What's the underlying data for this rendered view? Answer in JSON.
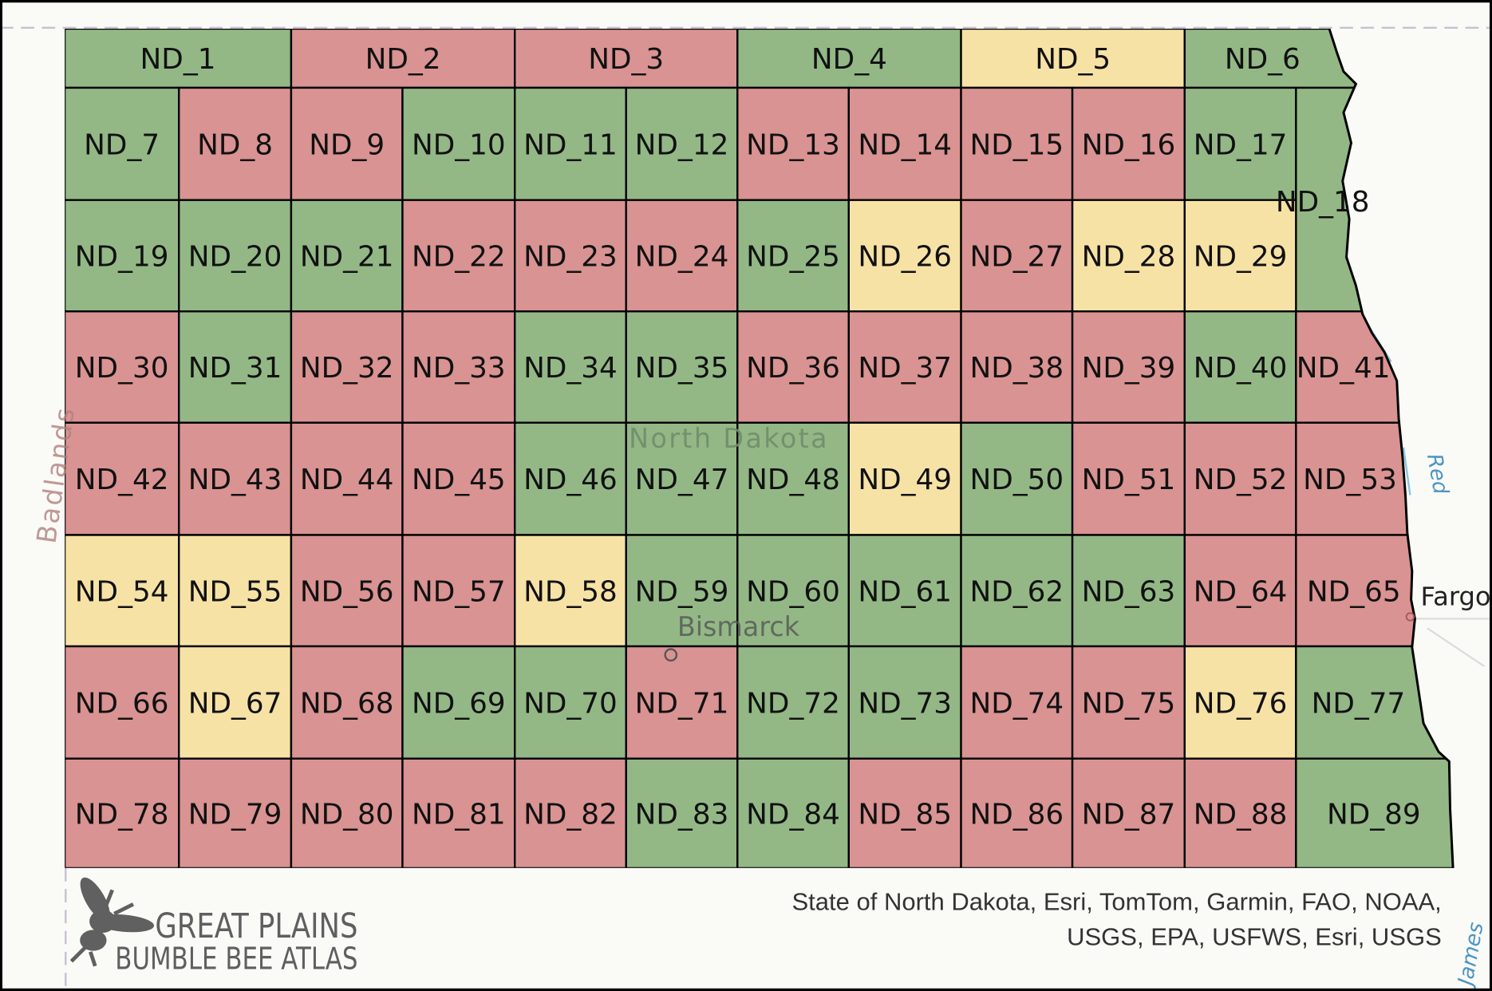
{
  "colors": {
    "green": "#93b886",
    "red": "#d99392",
    "yellow": "#f7e2a6"
  },
  "cells": [
    {
      "id": "ND_1",
      "c": "green"
    },
    {
      "id": "ND_2",
      "c": "red"
    },
    {
      "id": "ND_3",
      "c": "red"
    },
    {
      "id": "ND_4",
      "c": "green"
    },
    {
      "id": "ND_5",
      "c": "yellow"
    },
    {
      "id": "ND_6",
      "c": "green"
    },
    {
      "id": "ND_7",
      "c": "green"
    },
    {
      "id": "ND_8",
      "c": "red"
    },
    {
      "id": "ND_9",
      "c": "red"
    },
    {
      "id": "ND_10",
      "c": "green"
    },
    {
      "id": "ND_11",
      "c": "green"
    },
    {
      "id": "ND_12",
      "c": "green"
    },
    {
      "id": "ND_13",
      "c": "red"
    },
    {
      "id": "ND_14",
      "c": "red"
    },
    {
      "id": "ND_15",
      "c": "red"
    },
    {
      "id": "ND_16",
      "c": "red"
    },
    {
      "id": "ND_17",
      "c": "green"
    },
    {
      "id": "ND_18",
      "c": "green"
    },
    {
      "id": "ND_19",
      "c": "green"
    },
    {
      "id": "ND_20",
      "c": "green"
    },
    {
      "id": "ND_21",
      "c": "green"
    },
    {
      "id": "ND_22",
      "c": "red"
    },
    {
      "id": "ND_23",
      "c": "red"
    },
    {
      "id": "ND_24",
      "c": "red"
    },
    {
      "id": "ND_25",
      "c": "green"
    },
    {
      "id": "ND_26",
      "c": "yellow"
    },
    {
      "id": "ND_27",
      "c": "red"
    },
    {
      "id": "ND_28",
      "c": "yellow"
    },
    {
      "id": "ND_29",
      "c": "yellow"
    },
    {
      "id": "ND_30",
      "c": "red"
    },
    {
      "id": "ND_31",
      "c": "green"
    },
    {
      "id": "ND_32",
      "c": "red"
    },
    {
      "id": "ND_33",
      "c": "red"
    },
    {
      "id": "ND_34",
      "c": "green"
    },
    {
      "id": "ND_35",
      "c": "green"
    },
    {
      "id": "ND_36",
      "c": "red"
    },
    {
      "id": "ND_37",
      "c": "red"
    },
    {
      "id": "ND_38",
      "c": "red"
    },
    {
      "id": "ND_39",
      "c": "red"
    },
    {
      "id": "ND_40",
      "c": "green"
    },
    {
      "id": "ND_41",
      "c": "red"
    },
    {
      "id": "ND_42",
      "c": "red"
    },
    {
      "id": "ND_43",
      "c": "red"
    },
    {
      "id": "ND_44",
      "c": "red"
    },
    {
      "id": "ND_45",
      "c": "red"
    },
    {
      "id": "ND_46",
      "c": "green"
    },
    {
      "id": "ND_47",
      "c": "green"
    },
    {
      "id": "ND_48",
      "c": "green"
    },
    {
      "id": "ND_49",
      "c": "yellow"
    },
    {
      "id": "ND_50",
      "c": "green"
    },
    {
      "id": "ND_51",
      "c": "red"
    },
    {
      "id": "ND_52",
      "c": "red"
    },
    {
      "id": "ND_53",
      "c": "red"
    },
    {
      "id": "ND_54",
      "c": "yellow"
    },
    {
      "id": "ND_55",
      "c": "yellow"
    },
    {
      "id": "ND_56",
      "c": "red"
    },
    {
      "id": "ND_57",
      "c": "red"
    },
    {
      "id": "ND_58",
      "c": "yellow"
    },
    {
      "id": "ND_59",
      "c": "green"
    },
    {
      "id": "ND_60",
      "c": "green"
    },
    {
      "id": "ND_61",
      "c": "green"
    },
    {
      "id": "ND_62",
      "c": "green"
    },
    {
      "id": "ND_63",
      "c": "green"
    },
    {
      "id": "ND_64",
      "c": "red"
    },
    {
      "id": "ND_65",
      "c": "red"
    },
    {
      "id": "ND_66",
      "c": "red"
    },
    {
      "id": "ND_67",
      "c": "yellow"
    },
    {
      "id": "ND_68",
      "c": "red"
    },
    {
      "id": "ND_69",
      "c": "green"
    },
    {
      "id": "ND_70",
      "c": "green"
    },
    {
      "id": "ND_71",
      "c": "red"
    },
    {
      "id": "ND_72",
      "c": "green"
    },
    {
      "id": "ND_73",
      "c": "green"
    },
    {
      "id": "ND_74",
      "c": "red"
    },
    {
      "id": "ND_75",
      "c": "red"
    },
    {
      "id": "ND_76",
      "c": "yellow"
    },
    {
      "id": "ND_77",
      "c": "green"
    },
    {
      "id": "ND_78",
      "c": "red"
    },
    {
      "id": "ND_79",
      "c": "red"
    },
    {
      "id": "ND_80",
      "c": "red"
    },
    {
      "id": "ND_81",
      "c": "red"
    },
    {
      "id": "ND_82",
      "c": "red"
    },
    {
      "id": "ND_83",
      "c": "green"
    },
    {
      "id": "ND_84",
      "c": "green"
    },
    {
      "id": "ND_85",
      "c": "red"
    },
    {
      "id": "ND_86",
      "c": "red"
    },
    {
      "id": "ND_87",
      "c": "red"
    },
    {
      "id": "ND_88",
      "c": "red"
    },
    {
      "id": "ND_89",
      "c": "green"
    }
  ],
  "basemap": {
    "state": "North Dakota",
    "city": "Bismarck",
    "city2": "Fargo",
    "region": "Badlands",
    "river1": "Red",
    "river2": "James"
  },
  "attribution": {
    "line1": "State of North Dakota, Esri, TomTom, Garmin, FAO, NOAA,",
    "line2": "USGS, EPA, USFWS, Esri, USGS"
  },
  "logo": {
    "line1": "GREAT PLAINS",
    "line2": "BUMBLE BEE ATLAS"
  }
}
